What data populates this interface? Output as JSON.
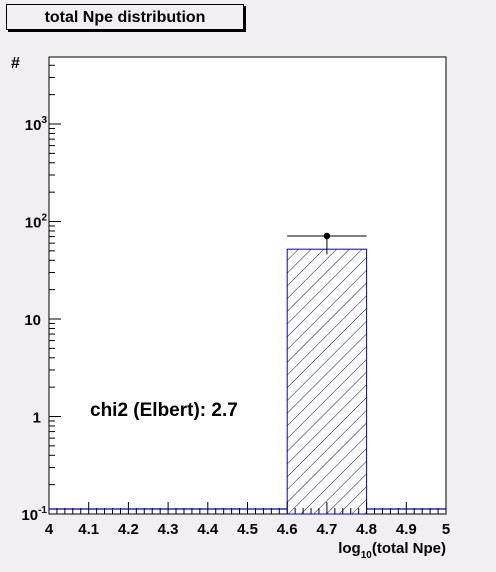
{
  "chart_data": {
    "type": "bar",
    "title": "total Npe distribution",
    "xlabel": "log10(total Npe)",
    "xlabel_main": "log",
    "xlabel_sub": "10",
    "xlabel_rest": "(total Npe)",
    "ylabel": "#",
    "y_scale": "log",
    "xlim": [
      4,
      5
    ],
    "ylim": [
      0.1,
      5000
    ],
    "x_ticks": [
      "4",
      "4.1",
      "4.2",
      "4.3",
      "4.4",
      "4.5",
      "4.6",
      "4.7",
      "4.8",
      "4.9",
      "5"
    ],
    "y_ticks": [
      {
        "value": 0.1,
        "base": "10",
        "exp": "-1"
      },
      {
        "value": 1,
        "base": "1",
        "exp": ""
      },
      {
        "value": 10,
        "base": "10",
        "exp": ""
      },
      {
        "value": 100,
        "base": "10",
        "exp": "2"
      },
      {
        "value": 1000,
        "base": "10",
        "exp": "3"
      }
    ],
    "histogram": {
      "bin_edges": [
        4.0,
        4.2,
        4.4,
        4.6,
        4.8,
        5.0
      ],
      "values": [
        0,
        0,
        0,
        52,
        0
      ],
      "fill": "hatched",
      "color": "#0000cc"
    },
    "data_point": {
      "x": 4.7,
      "y": 71,
      "y_low": 46,
      "x_low": 4.6,
      "x_high": 4.8
    },
    "annotation": "chi2 (Elbert): 2.7",
    "grid": false
  }
}
